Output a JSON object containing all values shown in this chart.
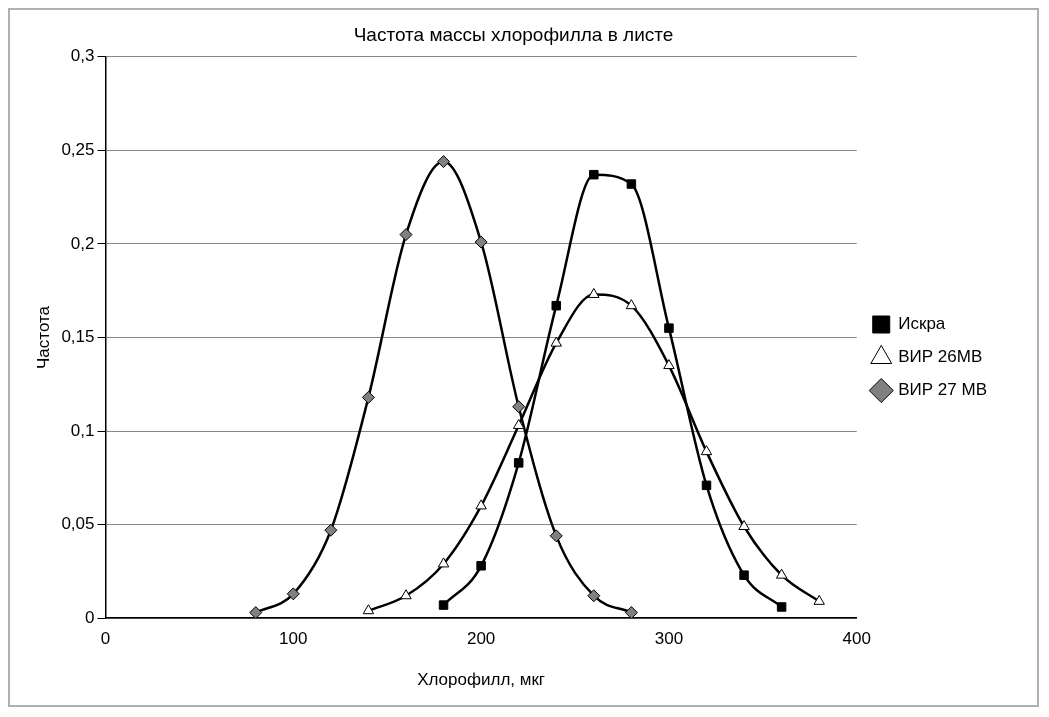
{
  "chart_data": {
    "type": "line",
    "title": "Частота массы хлорофилла в листе",
    "xlabel": "Хлорофилл, мкг",
    "ylabel": "Частота",
    "xlim": [
      0,
      400
    ],
    "xticks": [
      0,
      100,
      200,
      300,
      400
    ],
    "ylim": [
      0,
      0.3
    ],
    "yticks": [
      0,
      {
        "value": 0.05,
        "label": "0,05"
      },
      {
        "value": 0.1,
        "label": "0,1"
      },
      {
        "value": 0.15,
        "label": "0,15"
      },
      {
        "value": 0.2,
        "label": "0,2"
      },
      {
        "value": 0.25,
        "label": "0,25"
      },
      {
        "value": 0.3,
        "label": "0,3"
      }
    ],
    "grid": "y",
    "legend": "right",
    "series": [
      {
        "name": "Искра",
        "color": "#000000",
        "marker": "square",
        "x": [
          180,
          200,
          220,
          240,
          260,
          280,
          300,
          320,
          340,
          360
        ],
        "values": [
          0.007,
          0.028,
          0.083,
          0.167,
          0.237,
          0.232,
          0.155,
          0.071,
          0.023,
          0.006
        ]
      },
      {
        "name": "ВИР 26МВ",
        "color": "#000000",
        "marker": "triangle",
        "x": [
          140,
          160,
          180,
          200,
          220,
          240,
          260,
          280,
          300,
          320,
          340,
          360,
          380
        ],
        "values": [
          0.004,
          0.012,
          0.029,
          0.06,
          0.103,
          0.147,
          0.173,
          0.167,
          0.135,
          0.089,
          0.049,
          0.023,
          0.009
        ]
      },
      {
        "name": "ВИР 27 МВ",
        "color": "#000000",
        "marker": "diamond",
        "x": [
          80,
          100,
          120,
          140,
          160,
          180,
          200,
          220,
          240,
          260,
          280
        ],
        "values": [
          0.003,
          0.013,
          0.047,
          0.118,
          0.205,
          0.244,
          0.201,
          0.113,
          0.044,
          0.012,
          0.003
        ]
      }
    ]
  }
}
